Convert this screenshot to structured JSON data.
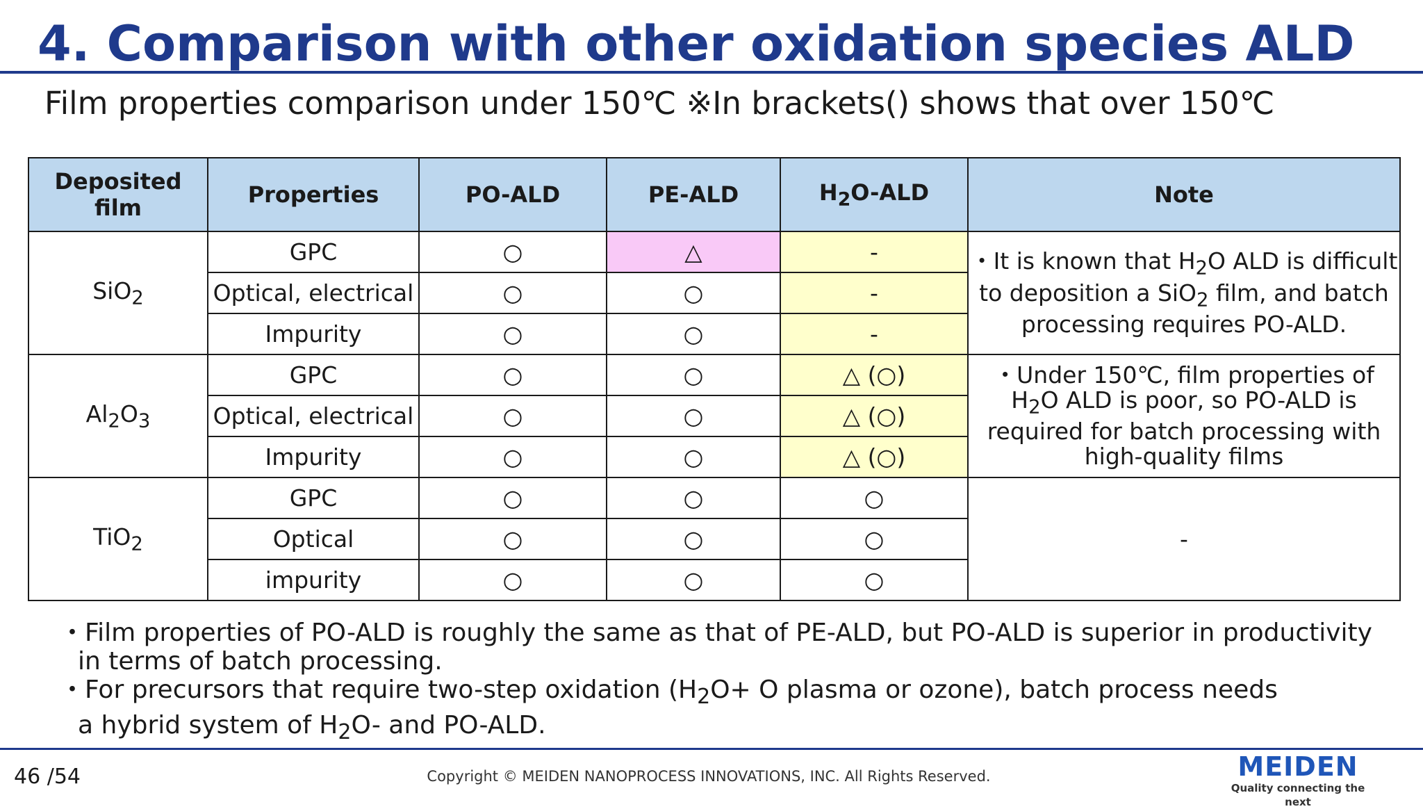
{
  "title": "4. Comparison with other oxidation species ALD",
  "subtitle": "Film properties comparison under 150℃ ※In brackets() shows that over 150℃",
  "table": {
    "headers": {
      "film": "Deposited film",
      "properties": "Properties",
      "po": "PO-ALD",
      "pe": "PE-ALD",
      "h2o_pre": "H",
      "h2o_sub": "2",
      "h2o_post": "O-ALD",
      "note": "Note"
    },
    "films": {
      "sio2": {
        "pre": "SiO",
        "sub": "2"
      },
      "al2o3": {
        "a": "Al",
        "s1": "2",
        "b": "O",
        "s2": "3"
      },
      "tio2": {
        "pre": "TiO",
        "sub": "2"
      }
    },
    "rows": [
      {
        "prop": "GPC",
        "po": "○",
        "pe": "△",
        "h2o": "-"
      },
      {
        "prop": "Optical, electrical",
        "po": "○",
        "pe": "○",
        "h2o": "-"
      },
      {
        "prop": "Impurity",
        "po": "○",
        "pe": "○",
        "h2o": "-"
      },
      {
        "prop": "GPC",
        "po": "○",
        "pe": "○",
        "h2o": "△ (○)"
      },
      {
        "prop": "Optical, electrical",
        "po": "○",
        "pe": "○",
        "h2o": "△ (○)"
      },
      {
        "prop": "Impurity",
        "po": "○",
        "pe": "○",
        "h2o": "△ (○)"
      },
      {
        "prop": "GPC",
        "po": "○",
        "pe": "○",
        "h2o": "○"
      },
      {
        "prop": "Optical",
        "po": "○",
        "pe": "○",
        "h2o": "○"
      },
      {
        "prop": "impurity",
        "po": "○",
        "pe": "○",
        "h2o": "○"
      }
    ],
    "notes": {
      "sio2": {
        "p1": "・It is known that H",
        "s1": "2",
        "p2": "O ALD is difficult to deposition a SiO",
        "s2": "2",
        "p3": " film, and batch processing requires PO-ALD."
      },
      "al2o3": {
        "p1": "・Under 150℃, film properties of H",
        "s1": "2",
        "p2": "O ALD is poor, so PO-ALD is required for batch processing with high-quality films"
      },
      "tio2": "-"
    }
  },
  "bullets": {
    "b1_l1": "・Film properties of PO-ALD is roughly the same as that of PE-ALD, but PO-ALD is superior in productivity",
    "b1_l2": "in terms of batch processing.",
    "b2_l1_a": "・For precursors that require two-step oxidation (H",
    "b2_l1_sub": "2",
    "b2_l1_b": "O+ O plasma or ozone), batch process needs",
    "b2_l2_a": "a hybrid system of H",
    "b2_l2_sub": "2",
    "b2_l2_b": "O- and PO-ALD."
  },
  "footer": {
    "page": "46 /54",
    "copyright": "Copyright © MEIDEN NANOPROCESS INNOVATIONS, INC. All Rights Reserved.",
    "logo": "MEIDEN",
    "tagline": "Quality connecting the next"
  },
  "colors": {
    "title": "#1f3a8c",
    "header_bg": "#bdd7ee",
    "pink": "#f9c9f7",
    "yellow": "#ffffcc",
    "logo": "#1f56b8"
  }
}
